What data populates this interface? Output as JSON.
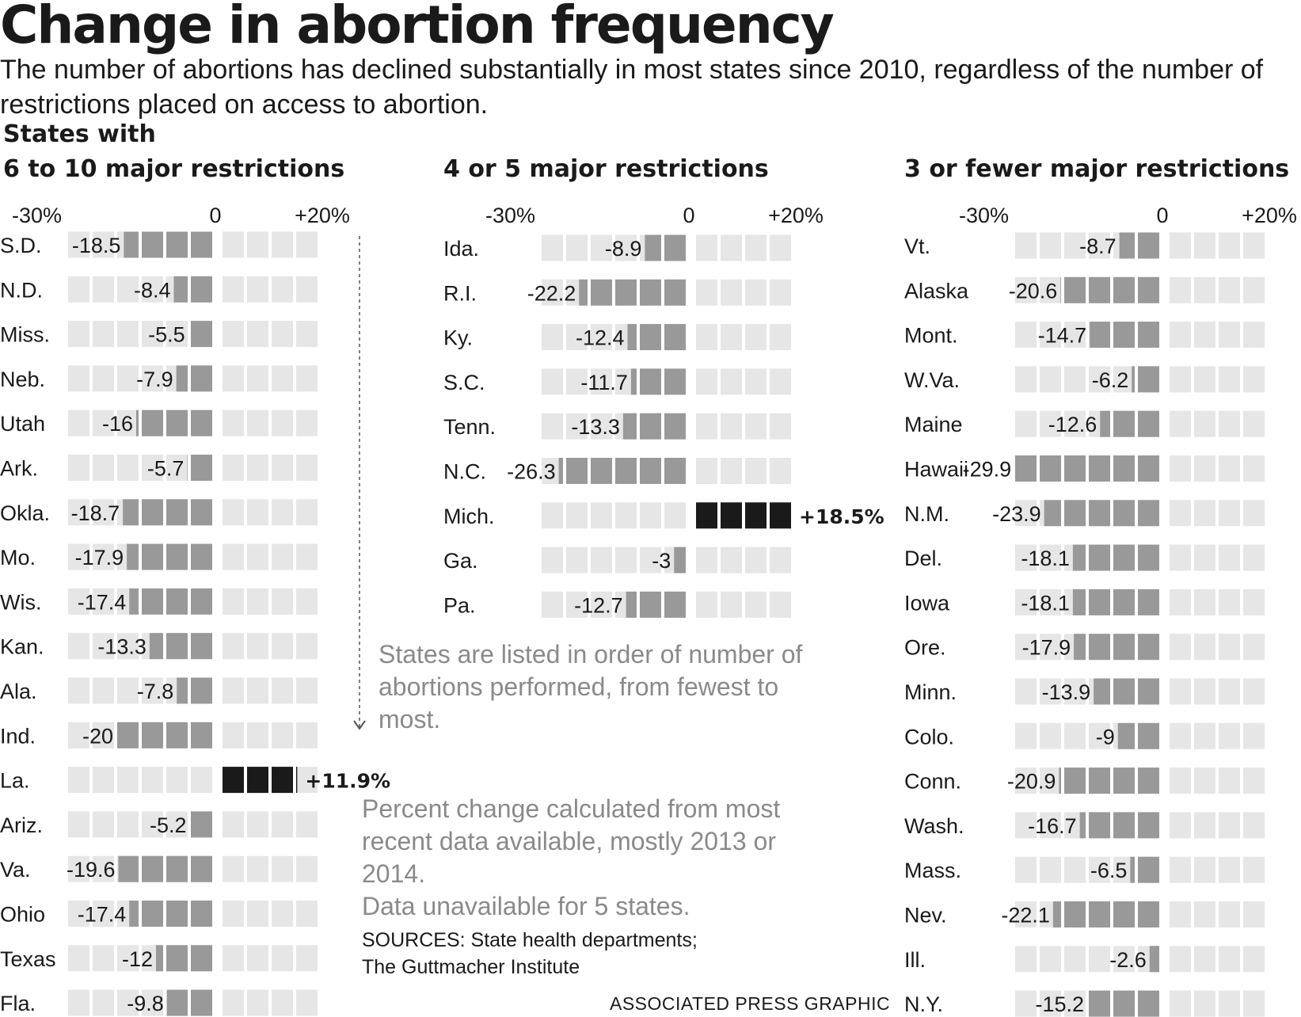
{
  "title": "Change in abortion frequency",
  "subtitle": "The number of abortions has declined substantially in most states since 2010, regardless of the number of restrictions placed on access to abortion.",
  "states_with": "States with",
  "notes": {
    "order": "States are listed in order of number of abortions performed, from fewest to most.",
    "calc_line1": "Percent change calculated from most recent data available, mostly 2013 or 2014.",
    "calc_line2": "Data unavailable for 5 states.",
    "sources_line1": "SOURCES: State health departments;",
    "sources_line2": "The Guttmacher Institute",
    "credit": "ASSOCIATED PRESS GRAPHIC"
  },
  "colors": {
    "decline": "#999999",
    "increase": "#1a1a1a",
    "empty": "#e6e6e6",
    "note_text": "#8a8a8a"
  },
  "chart_data": [
    {
      "type": "bar",
      "title": "6 to 10 major restrictions",
      "xlim": [
        -30,
        20
      ],
      "x_tick_labels": [
        "-30%",
        "0",
        "+20%"
      ],
      "unit": "percent change",
      "categories": [
        "S.D.",
        "N.D.",
        "Miss.",
        "Neb.",
        "Utah",
        "Ark.",
        "Okla.",
        "Mo.",
        "Wis.",
        "Kan.",
        "Ala.",
        "Ind.",
        "La.",
        "Ariz.",
        "Va.",
        "Ohio",
        "Texas",
        "Fla."
      ],
      "values": [
        -18.5,
        -8.4,
        -5.5,
        -7.9,
        -16,
        -5.7,
        -18.7,
        -17.9,
        -17.4,
        -13.3,
        -7.8,
        -20,
        11.9,
        -5.2,
        -19.6,
        -17.4,
        -12,
        -9.8
      ],
      "value_labels": [
        "-18.5",
        "-8.4",
        "-5.5",
        "-7.9",
        "-16",
        "-5.7",
        "-18.7",
        "-17.9",
        "-17.4",
        "-13.3",
        "-7.8",
        "-20",
        "+11.9%",
        "-5.2",
        "-19.6",
        "-17.4",
        "-12",
        "-9.8"
      ]
    },
    {
      "type": "bar",
      "title": "4 or 5 major restrictions",
      "xlim": [
        -30,
        20
      ],
      "x_tick_labels": [
        "-30%",
        "0",
        "+20%"
      ],
      "unit": "percent change",
      "categories": [
        "Ida.",
        "R.I.",
        "Ky.",
        "S.C.",
        "Tenn.",
        "N.C.",
        "Mich.",
        "Ga.",
        "Pa."
      ],
      "values": [
        -8.9,
        -22.2,
        -12.4,
        -11.7,
        -13.3,
        -26.3,
        18.5,
        -3,
        -12.7
      ],
      "value_labels": [
        "-8.9",
        "-22.2",
        "-12.4",
        "-11.7",
        "-13.3",
        "-26.3",
        "+18.5%",
        "-3",
        "-12.7"
      ]
    },
    {
      "type": "bar",
      "title": "3 or fewer major restrictions",
      "xlim": [
        -30,
        20
      ],
      "x_tick_labels": [
        "-30%",
        "0",
        "+20%"
      ],
      "unit": "percent change",
      "categories": [
        "Vt.",
        "Alaska",
        "Mont.",
        "W.Va.",
        "Maine",
        "Hawaii",
        "N.M.",
        "Del.",
        "Iowa",
        "Ore.",
        "Minn.",
        "Colo.",
        "Conn.",
        "Wash.",
        "Mass.",
        "Nev.",
        "Ill.",
        "N.Y."
      ],
      "values": [
        -8.7,
        -20.6,
        -14.7,
        -6.2,
        -12.6,
        -29.9,
        -23.9,
        -18.1,
        -18.1,
        -17.9,
        -13.9,
        -9,
        -20.9,
        -16.7,
        -6.5,
        -22.1,
        -2.6,
        -15.2
      ],
      "value_labels": [
        "-8.7",
        "-20.6",
        "-14.7",
        "-6.2",
        "-12.6",
        "-29.9",
        "-23.9",
        "-18.1",
        "-18.1",
        "-17.9",
        "-13.9",
        "-9",
        "-20.9",
        "-16.7",
        "-6.5",
        "-22.1",
        "-2.6",
        "-15.2"
      ]
    }
  ]
}
